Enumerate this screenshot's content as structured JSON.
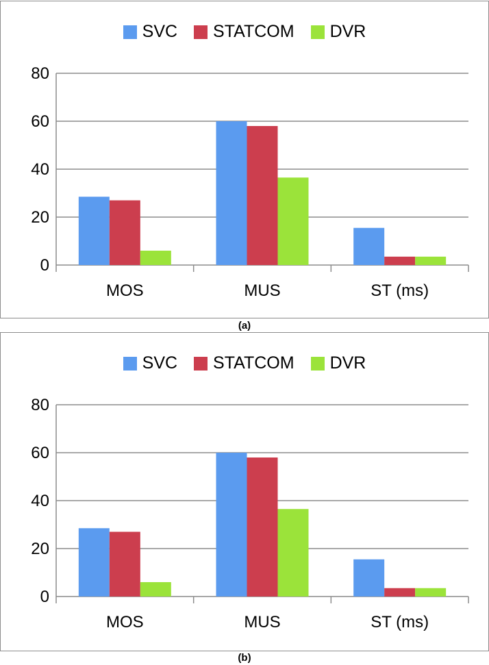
{
  "colors": {
    "SVC": "#5b9bef",
    "STATCOM": "#cc3e4e",
    "DVR": "#9be33a",
    "grid": "#8c8c8c",
    "axis": "#8c8c8c"
  },
  "chart_data": [
    {
      "type": "bar",
      "caption": "(a)",
      "categories": [
        "MOS",
        "MUS",
        "ST (ms)"
      ],
      "series": [
        {
          "name": "SVC",
          "values": [
            28.5,
            60,
            15.5
          ]
        },
        {
          "name": "STATCOM",
          "values": [
            27,
            58,
            3.5
          ]
        },
        {
          "name": "DVR",
          "values": [
            6,
            36.5,
            3.5
          ]
        }
      ],
      "yticks": [
        "0",
        "20",
        "40",
        "60",
        "80"
      ],
      "ylim": [
        0,
        80
      ],
      "grid": true,
      "legend": "top-center"
    },
    {
      "type": "bar",
      "caption": "(b)",
      "categories": [
        "MOS",
        "MUS",
        "ST (ms)"
      ],
      "series": [
        {
          "name": "SVC",
          "values": [
            28.5,
            60,
            15.5
          ]
        },
        {
          "name": "STATCOM",
          "values": [
            27,
            58,
            3.5
          ]
        },
        {
          "name": "DVR",
          "values": [
            6,
            36.5,
            3.5
          ]
        }
      ],
      "yticks": [
        "0",
        "20",
        "40",
        "60",
        "80"
      ],
      "ylim": [
        0,
        80
      ],
      "grid": true,
      "legend": "top-center"
    }
  ]
}
